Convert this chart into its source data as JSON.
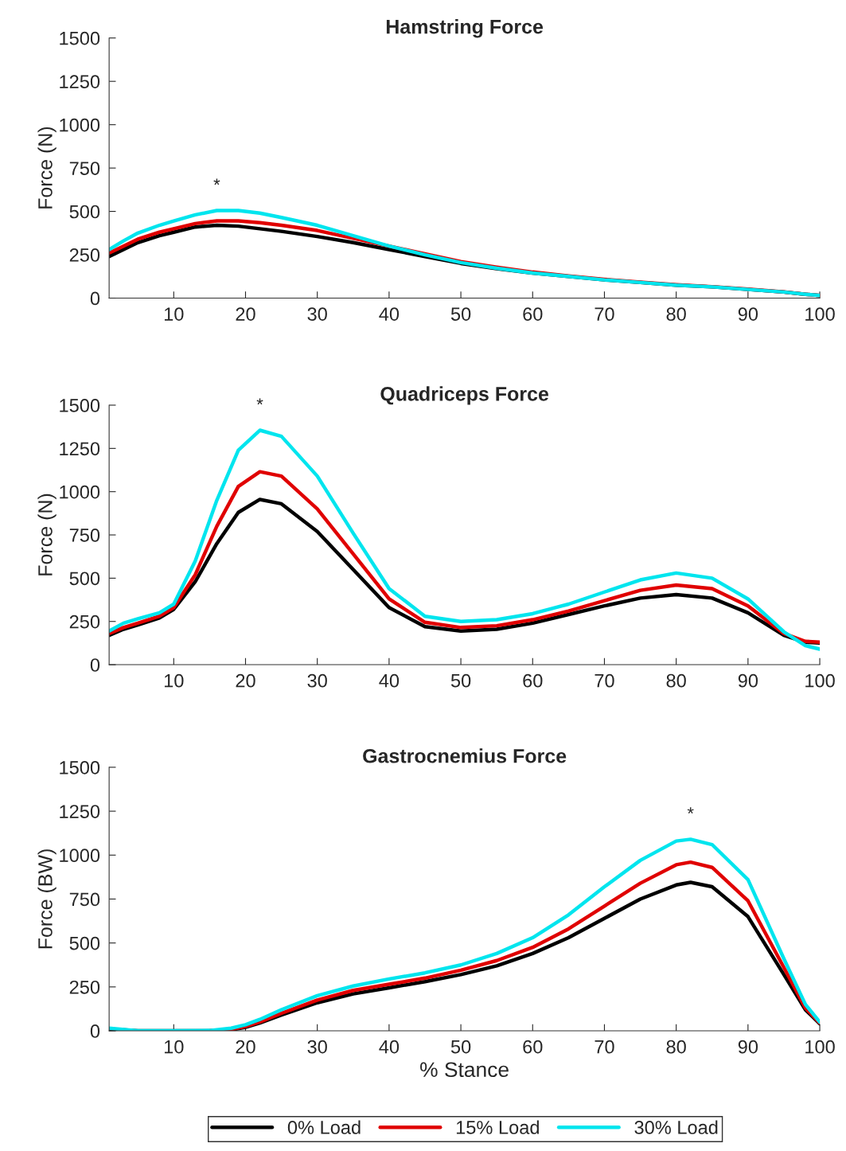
{
  "chart_data": [
    {
      "type": "line",
      "title": "Hamstring Force",
      "ylabel": "Force (N)",
      "xlim": [
        1,
        100
      ],
      "xticks": [
        10,
        20,
        30,
        40,
        50,
        60,
        70,
        80,
        90,
        100
      ],
      "ylim": [
        0,
        1500
      ],
      "yticks": [
        0,
        250,
        500,
        750,
        1000,
        1250,
        1500
      ],
      "grid": false,
      "legend": false,
      "x": [
        1,
        3,
        5,
        8,
        10,
        13,
        16,
        19,
        22,
        25,
        30,
        35,
        40,
        45,
        50,
        55,
        60,
        65,
        70,
        75,
        80,
        85,
        90,
        95,
        98,
        100
      ],
      "annotations": [
        "*"
      ],
      "series": [
        {
          "color": "#000000",
          "values": [
            240,
            280,
            320,
            360,
            380,
            410,
            420,
            415,
            400,
            385,
            355,
            320,
            280,
            240,
            200,
            170,
            145,
            125,
            105,
            90,
            75,
            65,
            50,
            35,
            22,
            15
          ]
        },
        {
          "color": "#e00000",
          "values": [
            260,
            300,
            340,
            380,
            400,
            430,
            445,
            445,
            435,
            420,
            390,
            345,
            300,
            255,
            210,
            178,
            150,
            128,
            108,
            92,
            77,
            66,
            52,
            36,
            22,
            15
          ]
        },
        {
          "color": "#00e5ee",
          "values": [
            280,
            330,
            375,
            420,
            445,
            480,
            505,
            505,
            490,
            465,
            420,
            360,
            300,
            250,
            205,
            172,
            145,
            125,
            105,
            90,
            75,
            65,
            50,
            35,
            22,
            15
          ]
        }
      ]
    },
    {
      "type": "line",
      "title": "Quadriceps Force",
      "ylabel": "Force (N)",
      "xlim": [
        1,
        100
      ],
      "xticks": [
        10,
        20,
        30,
        40,
        50,
        60,
        70,
        80,
        90,
        100
      ],
      "ylim": [
        0,
        1500
      ],
      "yticks": [
        0,
        250,
        500,
        750,
        1000,
        1250,
        1500
      ],
      "grid": false,
      "legend": false,
      "x": [
        1,
        3,
        5,
        8,
        10,
        13,
        16,
        19,
        22,
        25,
        30,
        35,
        40,
        45,
        50,
        55,
        60,
        65,
        70,
        75,
        80,
        85,
        90,
        95,
        98,
        100
      ],
      "annotations": [
        "*"
      ],
      "series": [
        {
          "color": "#000000",
          "values": [
            170,
            205,
            230,
            270,
            320,
            480,
            700,
            880,
            955,
            930,
            770,
            550,
            330,
            220,
            195,
            205,
            240,
            290,
            340,
            385,
            405,
            385,
            300,
            170,
            130,
            125
          ]
        },
        {
          "color": "#e00000",
          "values": [
            180,
            215,
            240,
            280,
            330,
            520,
            800,
            1030,
            1115,
            1090,
            900,
            640,
            380,
            245,
            215,
            225,
            260,
            310,
            370,
            430,
            460,
            440,
            340,
            180,
            135,
            130
          ]
        },
        {
          "color": "#00e5ee",
          "values": [
            195,
            240,
            265,
            300,
            350,
            600,
            950,
            1240,
            1355,
            1320,
            1090,
            760,
            440,
            280,
            250,
            260,
            295,
            350,
            420,
            490,
            530,
            500,
            380,
            190,
            110,
            90
          ]
        }
      ]
    },
    {
      "type": "line",
      "title": "Gastrocnemius Force",
      "ylabel": "Force (BW)",
      "xlabel": "% Stance",
      "xlim": [
        1,
        100
      ],
      "xticks": [
        10,
        20,
        30,
        40,
        50,
        60,
        70,
        80,
        90,
        100
      ],
      "ylim": [
        0,
        1500
      ],
      "yticks": [
        0,
        250,
        500,
        750,
        1000,
        1250,
        1500
      ],
      "grid": false,
      "legend": "bottom",
      "x": [
        1,
        5,
        10,
        15,
        18,
        20,
        22,
        25,
        30,
        35,
        40,
        45,
        50,
        55,
        60,
        65,
        70,
        75,
        80,
        82,
        85,
        90,
        95,
        98,
        100
      ],
      "annotations": [
        "*"
      ],
      "series": [
        {
          "name": "0% Load",
          "color": "#000000",
          "values": [
            10,
            0,
            0,
            0,
            5,
            20,
            45,
            90,
            160,
            210,
            245,
            280,
            320,
            370,
            440,
            530,
            640,
            750,
            830,
            845,
            820,
            650,
            320,
            120,
            40
          ]
        },
        {
          "name": "15% Load",
          "color": "#e00000",
          "values": [
            null,
            null,
            null,
            0,
            8,
            25,
            50,
            100,
            175,
            230,
            265,
            300,
            345,
            400,
            475,
            580,
            710,
            840,
            945,
            960,
            930,
            740,
            360,
            130,
            45
          ]
        },
        {
          "name": "30% Load",
          "color": "#00e5ee",
          "values": [
            15,
            0,
            0,
            2,
            15,
            35,
            65,
            120,
            200,
            255,
            295,
            330,
            375,
            440,
            530,
            660,
            820,
            970,
            1080,
            1090,
            1060,
            860,
            410,
            150,
            50
          ]
        }
      ]
    }
  ]
}
